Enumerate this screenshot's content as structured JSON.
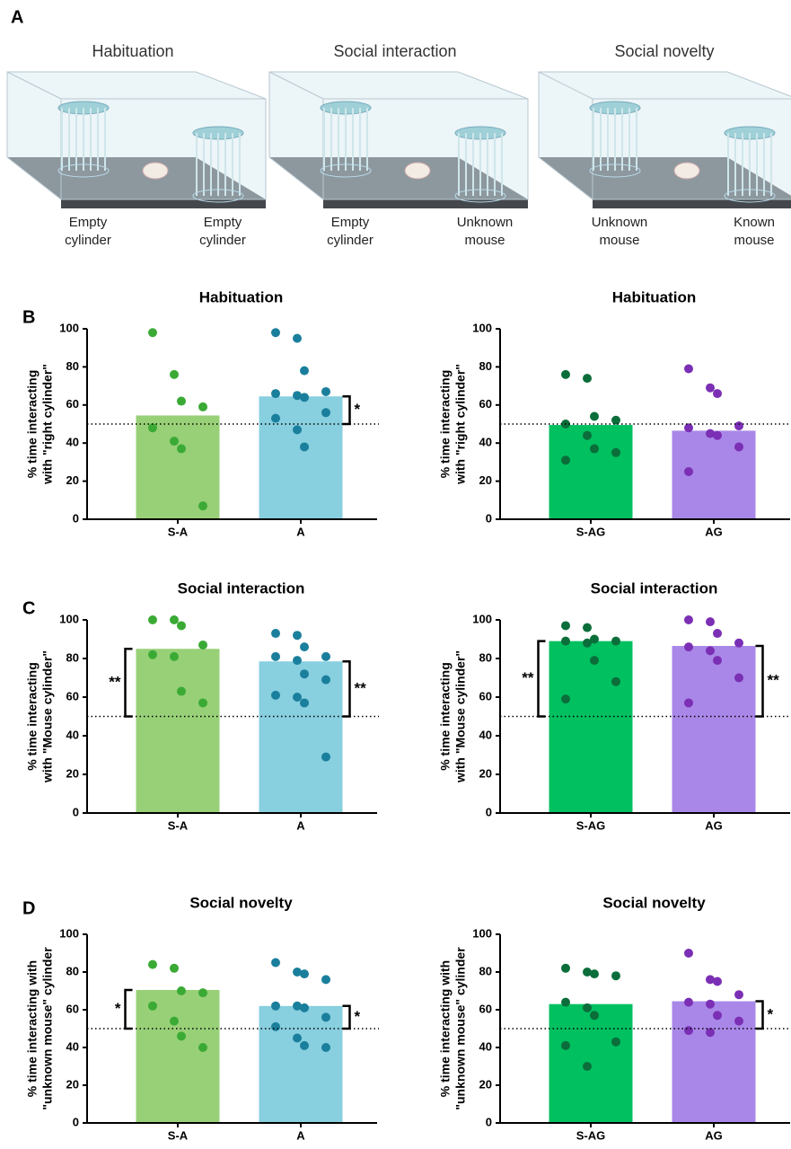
{
  "panel_labels": [
    "A",
    "B",
    "C",
    "D"
  ],
  "panel_a": {
    "scenes": [
      {
        "title": "Habituation",
        "left_label": [
          "Empty",
          "cylinder"
        ],
        "right_label": [
          "Empty",
          "cylinder"
        ]
      },
      {
        "title": "Social interaction",
        "left_label": [
          "Empty",
          "cylinder"
        ],
        "right_label": [
          "Unknown",
          "mouse"
        ]
      },
      {
        "title": "Social novelty",
        "left_label": [
          "Unknown",
          "mouse"
        ],
        "right_label": [
          "Known",
          "mouse"
        ]
      }
    ]
  },
  "chart_data": [
    {
      "type": "bar",
      "title": "Habituation",
      "ylabel": [
        "% time interacting",
        "with \"right cylinder\""
      ],
      "categories": [
        "S-A",
        "A"
      ],
      "values": [
        54.5,
        64.5
      ],
      "colors": [
        "#98d077",
        "#88cfdf"
      ],
      "point_colors": [
        "#3aaa35",
        "#1a7f9c"
      ],
      "points": [
        [
          98,
          76,
          62,
          59,
          48,
          41,
          37,
          7
        ],
        [
          98,
          95,
          78,
          67,
          66,
          65,
          64,
          56,
          53,
          47,
          38
        ]
      ],
      "ylim": [
        0,
        100
      ],
      "yticks": [
        0,
        20,
        40,
        60,
        80,
        100
      ],
      "reference_line": 50,
      "annotations": [
        {
          "category": 1,
          "side": "right",
          "label": "*"
        }
      ]
    },
    {
      "type": "bar",
      "title": "Habituation",
      "ylabel": [
        "% time interacting",
        "with \"right cylinder\""
      ],
      "categories": [
        "S-AG",
        "AG"
      ],
      "values": [
        49.5,
        46.5
      ],
      "colors": [
        "#00c060",
        "#a987e8"
      ],
      "point_colors": [
        "#0b6e3a",
        "#7b2fb4"
      ],
      "points": [
        [
          76,
          74,
          54,
          52,
          50,
          44,
          37,
          35,
          31
        ],
        [
          79,
          69,
          66,
          49,
          48,
          45,
          44,
          38,
          25
        ]
      ],
      "ylim": [
        0,
        100
      ],
      "yticks": [
        0,
        20,
        40,
        60,
        80,
        100
      ],
      "reference_line": 50,
      "annotations": []
    },
    {
      "type": "bar",
      "title": "Social interaction",
      "ylabel": [
        "% time interacting",
        "with \"Mouse cylinder\""
      ],
      "categories": [
        "S-A",
        "A"
      ],
      "values": [
        85,
        78.5
      ],
      "colors": [
        "#98d077",
        "#88cfdf"
      ],
      "point_colors": [
        "#3aaa35",
        "#1a7f9c"
      ],
      "points": [
        [
          100,
          100,
          97,
          87,
          82,
          81,
          63,
          57
        ],
        [
          93,
          92,
          86,
          81,
          81,
          79,
          72,
          69,
          61,
          60,
          57,
          29
        ]
      ],
      "ylim": [
        0,
        100
      ],
      "yticks": [
        0,
        20,
        40,
        60,
        80,
        100
      ],
      "reference_line": 50,
      "annotations": [
        {
          "category": 0,
          "side": "left",
          "label": "**"
        },
        {
          "category": 1,
          "side": "right",
          "label": "**"
        }
      ]
    },
    {
      "type": "bar",
      "title": "Social interaction",
      "ylabel": [
        "% time interacting",
        "with \"Mouse cylinder\""
      ],
      "categories": [
        "S-AG",
        "AG"
      ],
      "values": [
        89,
        86.5
      ],
      "colors": [
        "#00c060",
        "#a987e8"
      ],
      "point_colors": [
        "#0b6e3a",
        "#7b2fb4"
      ],
      "points": [
        [
          97,
          96,
          90,
          89,
          89,
          88,
          79,
          68,
          59
        ],
        [
          100,
          99,
          93,
          88,
          86,
          84,
          79,
          70,
          57
        ]
      ],
      "ylim": [
        0,
        100
      ],
      "yticks": [
        0,
        20,
        40,
        60,
        80,
        100
      ],
      "reference_line": 50,
      "annotations": [
        {
          "category": 0,
          "side": "left",
          "label": "**"
        },
        {
          "category": 1,
          "side": "right",
          "label": "**"
        }
      ]
    },
    {
      "type": "bar",
      "title": "Social novelty",
      "ylabel": [
        "% time interacting with",
        "\"unknown mouse\" cylinder"
      ],
      "categories": [
        "S-A",
        "A"
      ],
      "values": [
        70.5,
        62
      ],
      "colors": [
        "#98d077",
        "#88cfdf"
      ],
      "point_colors": [
        "#3aaa35",
        "#1a7f9c"
      ],
      "points": [
        [
          84,
          82,
          70,
          69,
          62,
          54,
          46,
          40
        ],
        [
          85,
          80,
          79,
          76,
          62,
          62,
          61,
          56,
          51,
          45,
          41,
          40
        ]
      ],
      "ylim": [
        0,
        100
      ],
      "yticks": [
        0,
        20,
        40,
        60,
        80,
        100
      ],
      "reference_line": 50,
      "annotations": [
        {
          "category": 0,
          "side": "left",
          "label": "*"
        },
        {
          "category": 1,
          "side": "right",
          "label": "*"
        }
      ]
    },
    {
      "type": "bar",
      "title": "Social novelty",
      "ylabel": [
        "% time interacting with",
        "\"unknown mouse\" cylinder"
      ],
      "categories": [
        "S-AG",
        "AG"
      ],
      "values": [
        63,
        64.5
      ],
      "colors": [
        "#00c060",
        "#a987e8"
      ],
      "point_colors": [
        "#0b6e3a",
        "#7b2fb4"
      ],
      "points": [
        [
          82,
          80,
          79,
          78,
          64,
          61,
          57,
          43,
          41,
          30
        ],
        [
          90,
          76,
          75,
          68,
          64,
          63,
          57,
          54,
          49,
          48
        ]
      ],
      "ylim": [
        0,
        100
      ],
      "yticks": [
        0,
        20,
        40,
        60,
        80,
        100
      ],
      "reference_line": 50,
      "annotations": [
        {
          "category": 1,
          "side": "right",
          "label": "*"
        }
      ]
    }
  ]
}
